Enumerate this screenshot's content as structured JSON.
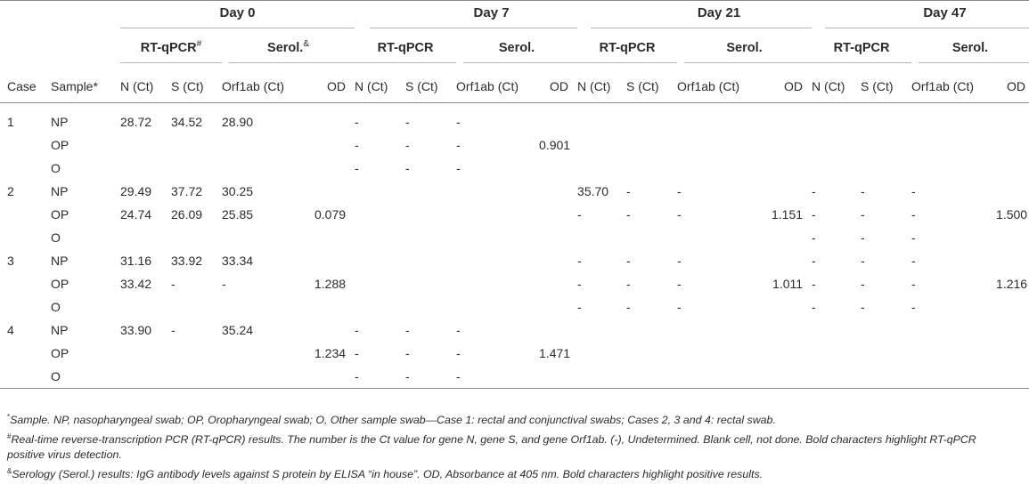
{
  "days": [
    "Day 0",
    "Day 7",
    "Day 21",
    "Day 47"
  ],
  "groups": {
    "rt": "RT-qPCR",
    "rt_mark": "#",
    "serol": "Serol.",
    "serol_mark": "&"
  },
  "cols": {
    "case": "Case",
    "sample": "Sample*",
    "n": "N (Ct)",
    "s": "S (Ct)",
    "orf": "Orf1ab (Ct)",
    "od": "OD"
  },
  "rows": [
    {
      "case": "1",
      "sample": "NP",
      "cells": [
        "28.72",
        "34.52",
        "28.90",
        "",
        "-",
        "-",
        "-",
        "",
        "",
        "",
        "",
        "",
        "",
        "",
        "",
        ""
      ]
    },
    {
      "case": "",
      "sample": "OP",
      "cells": [
        "",
        "",
        "",
        "",
        "-",
        "-",
        "-",
        "0.901",
        "",
        "",
        "",
        "",
        "",
        "",
        "",
        ""
      ]
    },
    {
      "case": "",
      "sample": "O",
      "cells": [
        "",
        "",
        "",
        "",
        "-",
        "-",
        "-",
        "",
        "",
        "",
        "",
        "",
        "",
        "",
        "",
        ""
      ]
    },
    {
      "case": "2",
      "sample": "NP",
      "cells": [
        "29.49",
        "37.72",
        "30.25",
        "",
        "",
        "",
        "",
        "",
        "35.70",
        "-",
        "-",
        "",
        "-",
        "-",
        "-",
        ""
      ]
    },
    {
      "case": "",
      "sample": "OP",
      "cells": [
        "24.74",
        "26.09",
        "25.85",
        "0.079",
        "",
        "",
        "",
        "",
        "-",
        "-",
        "-",
        "1.151",
        "-",
        "-",
        "-",
        "1.500"
      ]
    },
    {
      "case": "",
      "sample": "O",
      "cells": [
        "",
        "",
        "",
        "",
        "",
        "",
        "",
        "",
        "",
        "",
        "",
        "",
        "-",
        "-",
        "-",
        ""
      ]
    },
    {
      "case": "3",
      "sample": "NP",
      "cells": [
        "31.16",
        "33.92",
        "33.34",
        "",
        "",
        "",
        "",
        "",
        "-",
        "-",
        "-",
        "",
        "-",
        "-",
        "-",
        ""
      ]
    },
    {
      "case": "",
      "sample": "OP",
      "cells": [
        "33.42",
        "-",
        "-",
        "1.288",
        "",
        "",
        "",
        "",
        "-",
        "-",
        "-",
        "1.011",
        "-",
        "-",
        "-",
        "1.216"
      ]
    },
    {
      "case": "",
      "sample": "O",
      "cells": [
        "",
        "",
        "",
        "",
        "",
        "",
        "",
        "",
        "-",
        "-",
        "-",
        "",
        "-",
        "-",
        "-",
        ""
      ]
    },
    {
      "case": "4",
      "sample": "NP",
      "cells": [
        "33.90",
        "-",
        "35.24",
        "",
        "-",
        "-",
        "-",
        "",
        "",
        "",
        "",
        "",
        "",
        "",
        "",
        ""
      ]
    },
    {
      "case": "",
      "sample": "OP",
      "cells": [
        "",
        "",
        "",
        "1.234",
        "-",
        "-",
        "-",
        "1.471",
        "",
        "",
        "",
        "",
        "",
        "",
        "",
        ""
      ]
    },
    {
      "case": "",
      "sample": "O",
      "cells": [
        "",
        "",
        "",
        "",
        "-",
        "-",
        "-",
        "",
        "",
        "",
        "",
        "",
        "",
        "",
        "",
        ""
      ]
    }
  ],
  "bold": [
    [
      0,
      0
    ],
    [
      0,
      1
    ],
    [
      0,
      2
    ],
    [
      1,
      7
    ],
    [
      3,
      0
    ],
    [
      3,
      2
    ],
    [
      4,
      0
    ],
    [
      4,
      1
    ],
    [
      4,
      2
    ],
    [
      4,
      11
    ],
    [
      4,
      15
    ],
    [
      6,
      0
    ],
    [
      6,
      1
    ],
    [
      6,
      2
    ],
    [
      7,
      0
    ],
    [
      7,
      3
    ],
    [
      7,
      11
    ],
    [
      7,
      15
    ],
    [
      9,
      0
    ],
    [
      9,
      2
    ],
    [
      10,
      3
    ],
    [
      10,
      7
    ]
  ],
  "footnotes": [
    {
      "mark": "*",
      "text": "Sample. NP, nasopharyngeal swab; OP, Oropharyngeal swab; O, Other sample swab—Case 1: rectal and conjunctival swabs; Cases 2, 3 and 4: rectal swab."
    },
    {
      "mark": "#",
      "text": "Real-time reverse-transcription PCR (RT-qPCR) results. The number is the Ct value for gene N, gene S, and gene Orf1ab. (-), Undetermined. Blank cell, not done. Bold characters highlight RT-qPCR positive virus detection."
    },
    {
      "mark": "&",
      "text": "Serology (Serol.) results: IgG antibody levels against S protein by ELISA “in house”. OD, Absorbance at 405 nm. Bold characters highlight positive results."
    }
  ]
}
